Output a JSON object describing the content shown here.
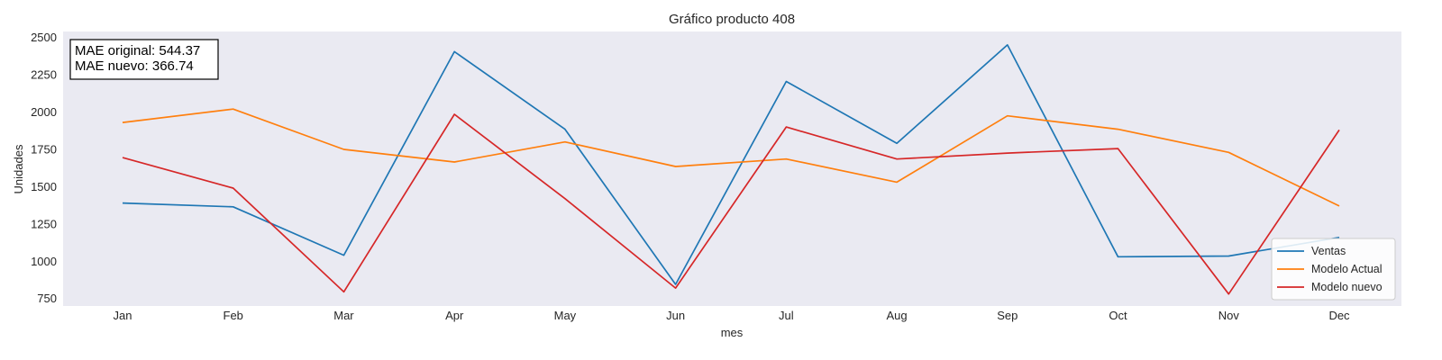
{
  "chart_data": {
    "type": "line",
    "title": "Gráfico producto 408",
    "xlabel": "mes",
    "ylabel": "Unidades",
    "categories": [
      "Jan",
      "Feb",
      "Mar",
      "Apr",
      "May",
      "Jun",
      "Jul",
      "Aug",
      "Sep",
      "Oct",
      "Nov",
      "Dec"
    ],
    "ylim": [
      700,
      2540
    ],
    "yticks": [
      750,
      1000,
      1250,
      1500,
      1750,
      2000,
      2250,
      2500
    ],
    "grid": false,
    "legend_position": "lower-right",
    "background_color": "#eaeaf2",
    "series": [
      {
        "name": "Ventas",
        "color": "#1f77b4",
        "values": [
          1390,
          1365,
          1040,
          2405,
          1885,
          845,
          2205,
          1790,
          2450,
          1030,
          1035,
          1160
        ]
      },
      {
        "name": "Modelo Actual",
        "color": "#ff7f0e",
        "values": [
          1930,
          2020,
          1750,
          1665,
          1800,
          1635,
          1685,
          1530,
          1975,
          1885,
          1730,
          1370
        ]
      },
      {
        "name": "Modelo nuevo",
        "color": "#d62728",
        "values": [
          1695,
          1490,
          795,
          1985,
          1420,
          820,
          1900,
          1685,
          1725,
          1755,
          780,
          1880
        ]
      }
    ],
    "annotation": {
      "lines": [
        "MAE original: 544.37",
        "MAE nuevo: 366.74"
      ]
    }
  }
}
